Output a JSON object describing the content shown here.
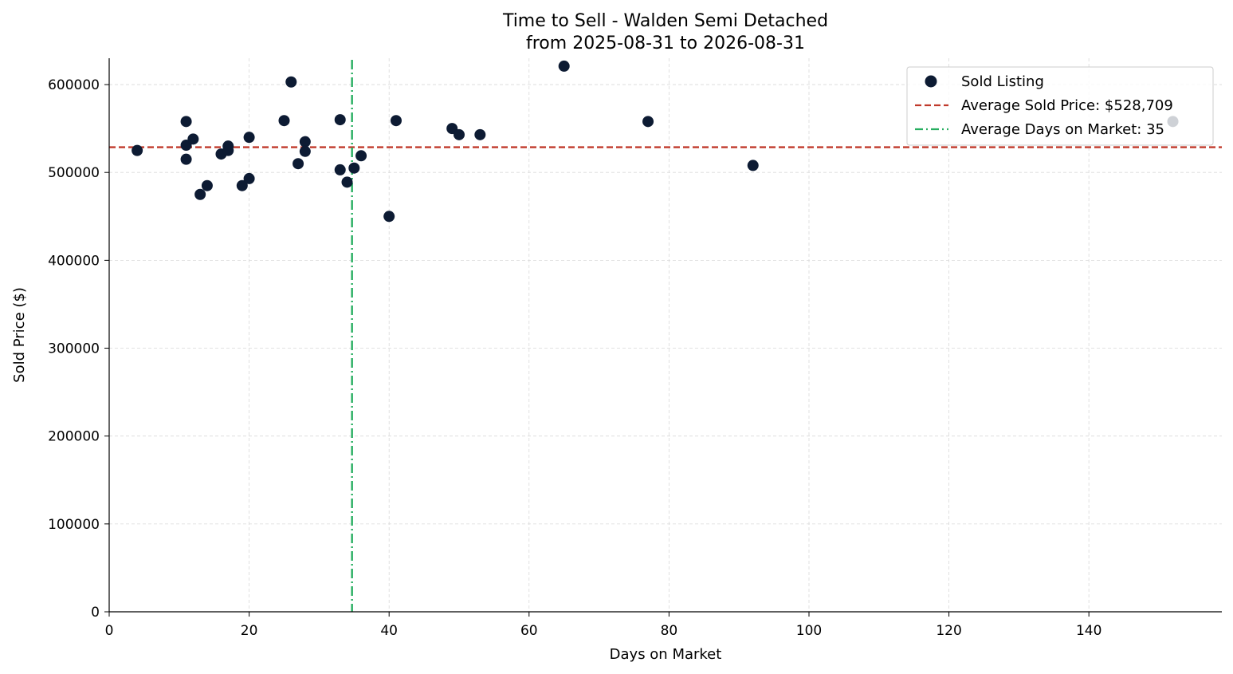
{
  "chart_data": {
    "type": "scatter",
    "title": "Time to Sell - Walden Semi Detached",
    "subtitle": "from 2025-08-31 to 2026-08-31",
    "xlabel": "Days on Market",
    "ylabel": "Sold Price ($)",
    "xlim": [
      0,
      159
    ],
    "ylim": [
      0,
      630000
    ],
    "xticks": [
      0,
      20,
      40,
      60,
      80,
      100,
      120,
      140
    ],
    "yticks": [
      0,
      100000,
      200000,
      300000,
      400000,
      500000,
      600000
    ],
    "grid": true,
    "legend_position": "top-right",
    "colors": {
      "points": "#0d1b33",
      "avg_price_line": "#c0392b",
      "avg_days_line": "#27ae60"
    },
    "series": [
      {
        "name": "Sold Listing",
        "points": [
          {
            "x": 4,
            "y": 525000
          },
          {
            "x": 11,
            "y": 558000
          },
          {
            "x": 11,
            "y": 531000
          },
          {
            "x": 11,
            "y": 515000
          },
          {
            "x": 12,
            "y": 538000
          },
          {
            "x": 13,
            "y": 475000
          },
          {
            "x": 14,
            "y": 485000
          },
          {
            "x": 16,
            "y": 521000
          },
          {
            "x": 17,
            "y": 530000
          },
          {
            "x": 17,
            "y": 525000
          },
          {
            "x": 19,
            "y": 485000
          },
          {
            "x": 20,
            "y": 540000
          },
          {
            "x": 20,
            "y": 493000
          },
          {
            "x": 25,
            "y": 559000
          },
          {
            "x": 26,
            "y": 603000
          },
          {
            "x": 27,
            "y": 510000
          },
          {
            "x": 28,
            "y": 535000
          },
          {
            "x": 28,
            "y": 524000
          },
          {
            "x": 33,
            "y": 560000
          },
          {
            "x": 33,
            "y": 503000
          },
          {
            "x": 34,
            "y": 489000
          },
          {
            "x": 35,
            "y": 505000
          },
          {
            "x": 36,
            "y": 519000
          },
          {
            "x": 40,
            "y": 450000
          },
          {
            "x": 41,
            "y": 559000
          },
          {
            "x": 49,
            "y": 550000
          },
          {
            "x": 50,
            "y": 543000
          },
          {
            "x": 53,
            "y": 543000
          },
          {
            "x": 65,
            "y": 621000
          },
          {
            "x": 77,
            "y": 558000
          },
          {
            "x": 92,
            "y": 508000
          },
          {
            "x": 152,
            "y": 558000
          }
        ]
      }
    ],
    "reference_lines": [
      {
        "name": "Average Sold Price: $528,709",
        "orientation": "horizontal",
        "value": 528709,
        "style": "dashed"
      },
      {
        "name": "Average Days on Market: 35",
        "orientation": "vertical",
        "value": 34.7,
        "style": "dashdot"
      }
    ]
  }
}
